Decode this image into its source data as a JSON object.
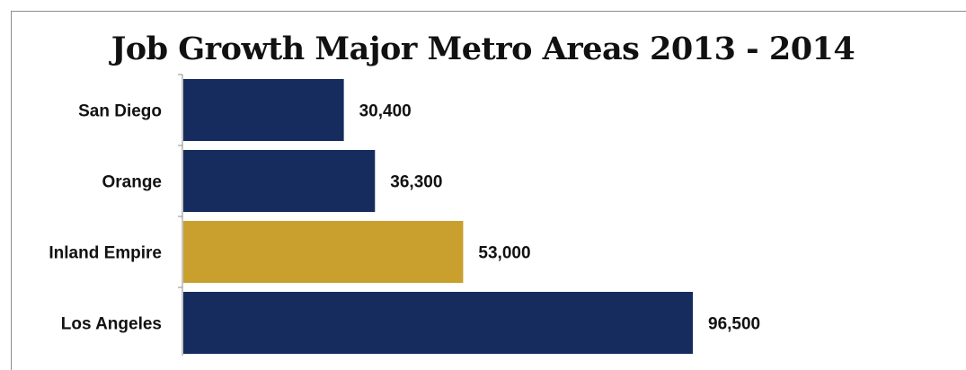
{
  "chart_data": {
    "type": "bar",
    "orientation": "horizontal",
    "title": "Job Growth Major Metro Areas 2013 - 2014",
    "categories": [
      "San Diego",
      "Orange",
      "Inland Empire",
      "Los Angeles"
    ],
    "values": [
      30400,
      36300,
      53000,
      96500
    ],
    "value_labels": [
      "30,400",
      "36,300",
      "53,000",
      "96,500"
    ],
    "highlight": "Inland Empire",
    "colors": {
      "default": "#162b5e",
      "highlight": "#c9a02e",
      "axis": "#8c8c8c"
    },
    "xlim": [
      0,
      100000
    ],
    "grid": false,
    "legend": "none"
  }
}
